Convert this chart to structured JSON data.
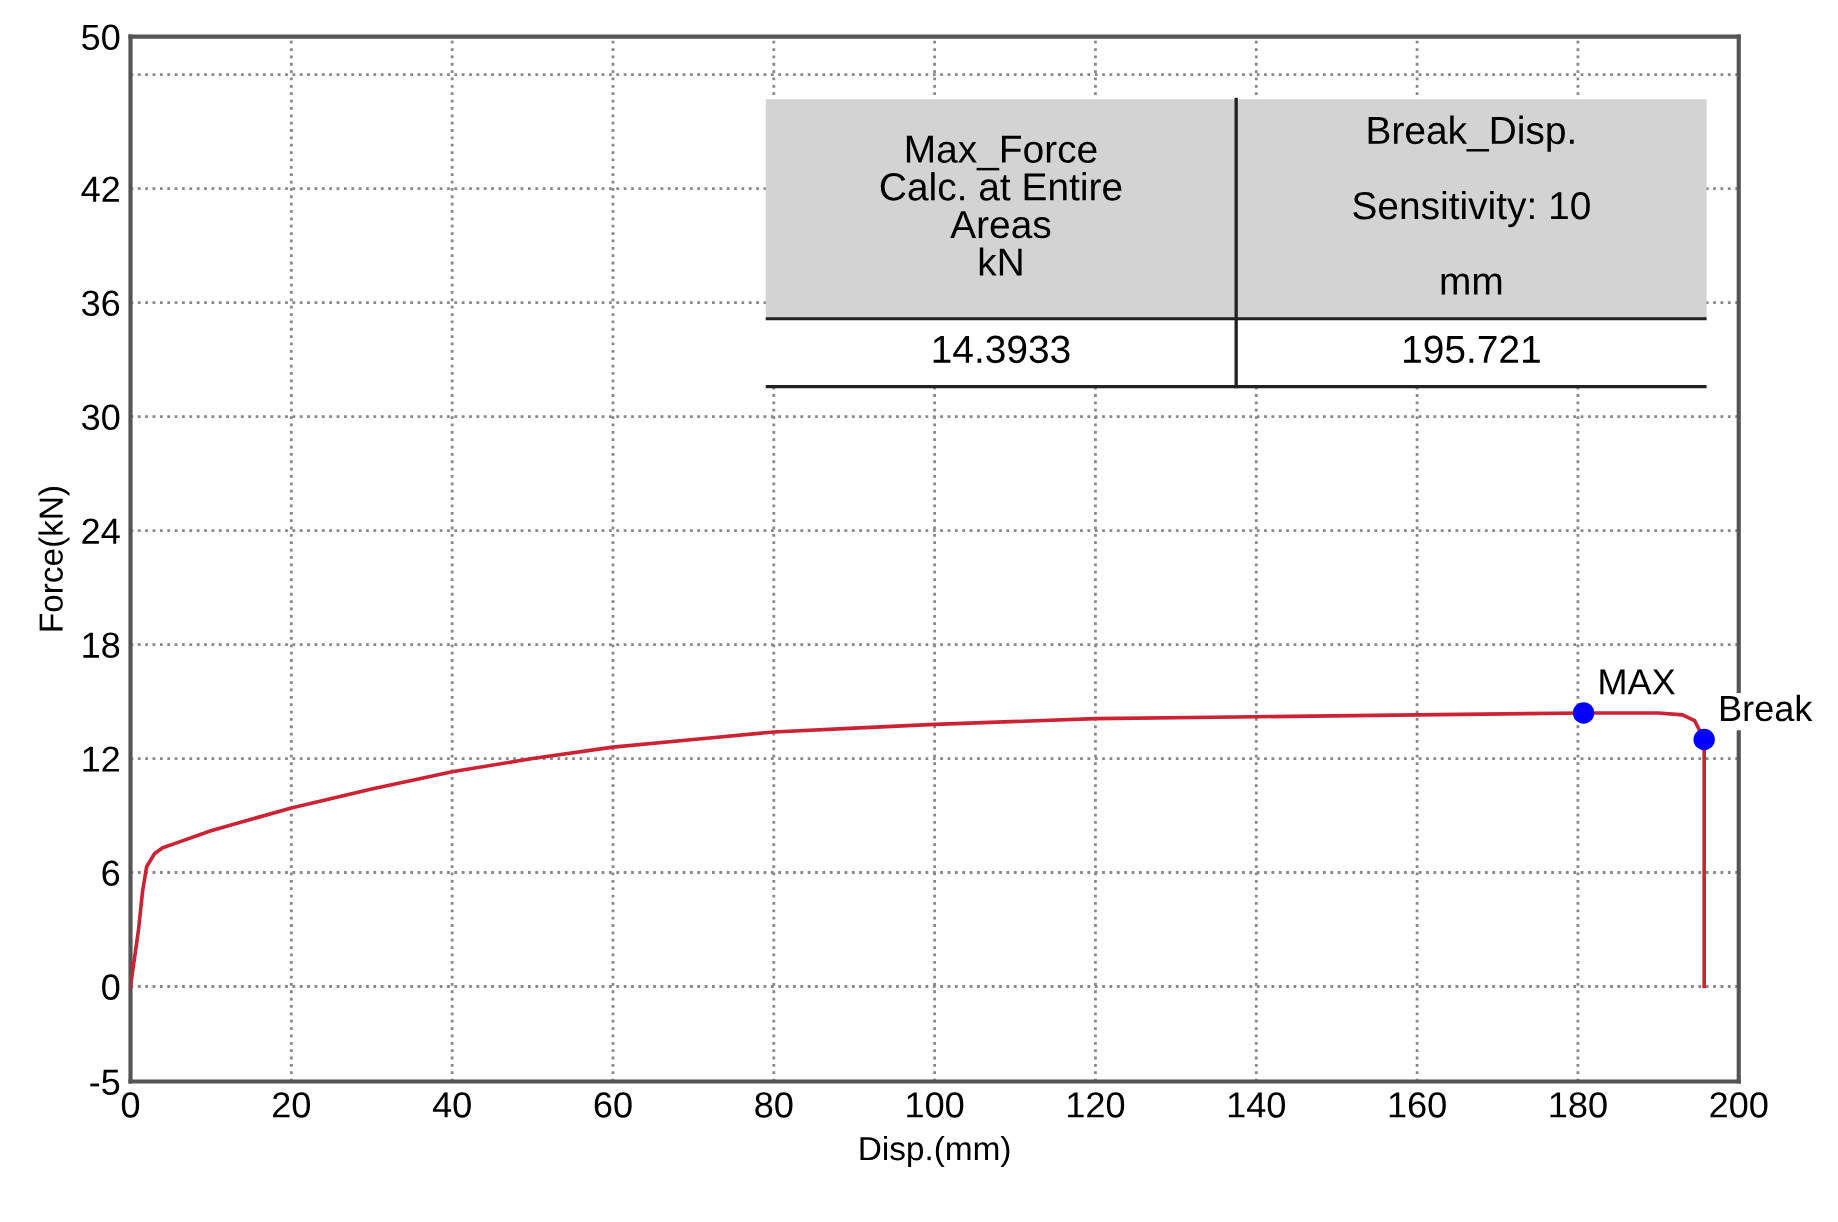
{
  "chart_data": {
    "type": "line",
    "xlabel": "Disp.(mm)",
    "ylabel": "Force(kN)",
    "xlim": [
      0,
      200
    ],
    "xticks": [
      0,
      20,
      40,
      60,
      80,
      100,
      120,
      140,
      160,
      180,
      200
    ],
    "ylim": [
      -5,
      50
    ],
    "yticks": [
      -5,
      0,
      6,
      12,
      18,
      24,
      30,
      36,
      42,
      {
        "value": 48,
        "label": null
      },
      50
    ],
    "grid": true,
    "marker": "none",
    "line_style": "solid",
    "series": [
      {
        "color": "#cc2233",
        "x": [
          0,
          1,
          1.5,
          2,
          3,
          4,
          6,
          10,
          20,
          30,
          40,
          50,
          60,
          70,
          80,
          90,
          100,
          120,
          140,
          160,
          180.7,
          190,
          193,
          194.5,
          195.7,
          195.7
        ],
        "values": [
          0,
          3,
          5,
          6.3,
          7,
          7.3,
          7.6,
          8.2,
          9.4,
          10.4,
          11.3,
          12,
          12.6,
          13,
          13.4,
          13.6,
          13.8,
          14.1,
          14.2,
          14.3,
          14.4,
          14.4,
          14.3,
          14,
          13,
          0
        ]
      },
      {
        "type": "scatter",
        "marker": "circle",
        "color": "#0000ff",
        "x": [
          180.7,
          195.7
        ],
        "values": [
          14.4,
          13
        ]
      }
    ],
    "annotations": [
      {
        "text": "MAX",
        "x": 180.7,
        "y": 14.4
      },
      {
        "text": "Break",
        "x": 195.7,
        "y": 13
      },
      "Max_Force\nCalc. at Entire\nAreas\nkN",
      "Break_Disp.\n\nSensitivity: 10\n\nmm",
      "14.3933",
      "195.721"
    ]
  }
}
